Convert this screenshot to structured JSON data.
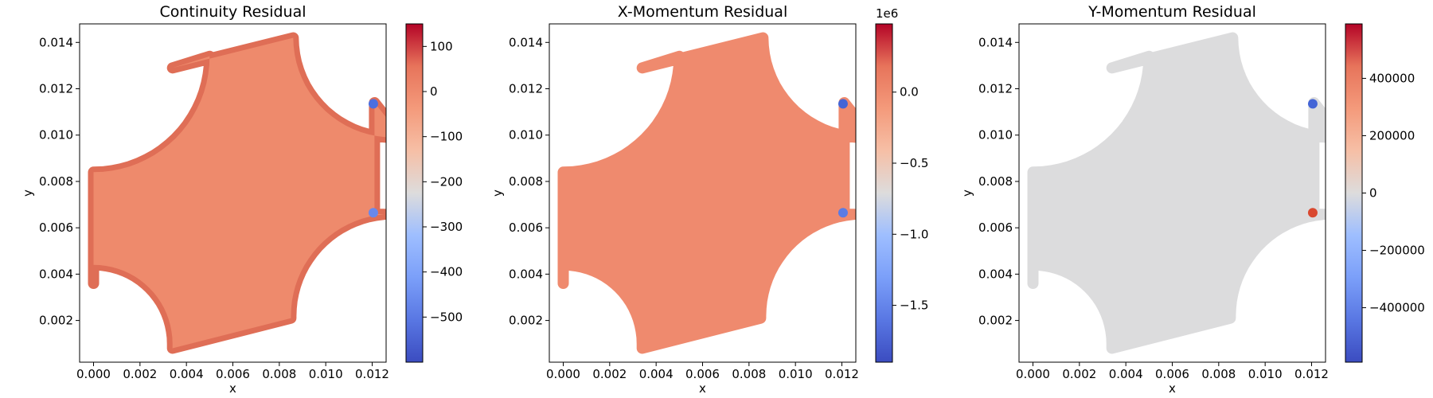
{
  "chart_data": [
    {
      "type": "scatter",
      "title": "Continuity Residual",
      "xlabel": "x",
      "ylabel": "y",
      "xlim": [
        -0.0006,
        0.0126
      ],
      "ylim": [
        0.0002,
        0.0148
      ],
      "xticks": [
        "0.000",
        "0.002",
        "0.004",
        "0.006",
        "0.008",
        "0.010",
        "0.012"
      ],
      "yticks": [
        "0.002",
        "0.004",
        "0.006",
        "0.008",
        "0.010",
        "0.012",
        "0.014"
      ],
      "colorbar": {
        "cmap": "coolwarm",
        "range": [
          -600,
          150
        ],
        "ticks": [
          "100",
          "0",
          "−100",
          "−200",
          "−300",
          "−400",
          "−500"
        ],
        "offset_label": ""
      },
      "base_color": "#ee8a6c",
      "edge_color": "#df6e56",
      "highlights": [
        {
          "x": 0.01205,
          "y": 0.01135,
          "color": "#4c6fe0"
        },
        {
          "x": 0.01205,
          "y": 0.00665,
          "color": "#6888ec"
        }
      ]
    },
    {
      "type": "scatter",
      "title": "X-Momentum Residual",
      "xlabel": "x",
      "ylabel": "y",
      "xlim": [
        -0.0006,
        0.0126
      ],
      "ylim": [
        0.0002,
        0.0148
      ],
      "xticks": [
        "0.000",
        "0.002",
        "0.004",
        "0.006",
        "0.008",
        "0.010",
        "0.012"
      ],
      "yticks": [
        "0.002",
        "0.004",
        "0.006",
        "0.008",
        "0.010",
        "0.012",
        "0.014"
      ],
      "colorbar": {
        "cmap": "coolwarm",
        "range": [
          -1900000,
          480000
        ],
        "ticks": [
          "0.0",
          "−0.5",
          "−1.0",
          "−1.5"
        ],
        "offset_label": "1e6"
      },
      "base_color": "#ef8a6e",
      "edge_color": "#ef8a6e",
      "highlights": [
        {
          "x": 0.01205,
          "y": 0.01135,
          "color": "#4465d6"
        },
        {
          "x": 0.01205,
          "y": 0.00665,
          "color": "#5a7be4"
        }
      ]
    },
    {
      "type": "scatter",
      "title": "Y-Momentum Residual",
      "xlabel": "x",
      "ylabel": "y",
      "xlim": [
        -0.0006,
        0.0126
      ],
      "ylim": [
        0.0002,
        0.0148
      ],
      "xticks": [
        "0.000",
        "0.002",
        "0.004",
        "0.006",
        "0.008",
        "0.010",
        "0.012"
      ],
      "yticks": [
        "0.002",
        "0.004",
        "0.006",
        "0.008",
        "0.010",
        "0.012",
        "0.014"
      ],
      "colorbar": {
        "cmap": "coolwarm",
        "range": [
          -590000,
          590000
        ],
        "ticks": [
          "400000",
          "200000",
          "0",
          "−200000",
          "−400000"
        ],
        "offset_label": ""
      },
      "base_color": "#dcdcdd",
      "edge_color": "#dcdcdd",
      "highlights": [
        {
          "x": 0.01205,
          "y": 0.01135,
          "color": "#4465d6"
        },
        {
          "x": 0.01205,
          "y": 0.00665,
          "color": "#d9482f"
        }
      ]
    }
  ]
}
